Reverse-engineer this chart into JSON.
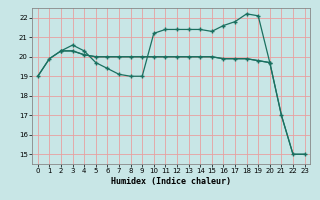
{
  "xlabel": "Humidex (Indice chaleur)",
  "bg_color": "#c8e6e6",
  "grid_color": "#e8a0a0",
  "line_color": "#1a7060",
  "xlim": [
    -0.5,
    23.5
  ],
  "ylim": [
    14.5,
    22.5
  ],
  "xticks": [
    0,
    1,
    2,
    3,
    4,
    5,
    6,
    7,
    8,
    9,
    10,
    11,
    12,
    13,
    14,
    15,
    16,
    17,
    18,
    19,
    20,
    21,
    22,
    23
  ],
  "yticks": [
    15,
    16,
    17,
    18,
    19,
    20,
    21,
    22
  ],
  "line1_x": [
    0,
    1,
    2,
    3,
    4,
    5,
    6,
    7,
    8,
    9,
    10,
    11,
    12,
    13,
    14,
    15,
    16,
    17,
    18,
    19,
    20
  ],
  "line1_y": [
    19.0,
    19.9,
    20.3,
    20.3,
    20.1,
    20.0,
    20.0,
    20.0,
    20.0,
    20.0,
    20.0,
    20.0,
    20.0,
    20.0,
    20.0,
    20.0,
    19.9,
    19.9,
    19.9,
    19.8,
    19.7
  ],
  "line2_x": [
    2,
    3,
    4,
    5,
    6,
    7,
    8,
    9,
    10,
    11,
    12,
    13,
    14,
    15,
    16,
    17,
    18,
    19,
    20,
    21,
    22,
    23
  ],
  "line2_y": [
    20.3,
    20.6,
    20.3,
    19.7,
    19.4,
    19.1,
    19.0,
    19.0,
    21.2,
    21.4,
    21.4,
    21.4,
    21.4,
    21.3,
    21.6,
    21.8,
    22.2,
    22.1,
    19.7,
    17.0,
    15.0,
    15.0
  ],
  "line3_x": [
    0,
    1,
    2,
    3,
    4,
    5,
    6,
    7,
    8,
    9,
    10,
    11,
    12,
    13,
    14,
    15,
    16,
    17,
    18,
    19,
    20,
    21,
    22,
    23
  ],
  "line3_y": [
    19.0,
    19.9,
    20.3,
    20.3,
    20.1,
    20.0,
    20.0,
    20.0,
    20.0,
    20.0,
    20.0,
    20.0,
    20.0,
    20.0,
    20.0,
    20.0,
    19.9,
    19.9,
    19.9,
    19.8,
    19.7,
    17.0,
    15.0,
    15.0
  ]
}
